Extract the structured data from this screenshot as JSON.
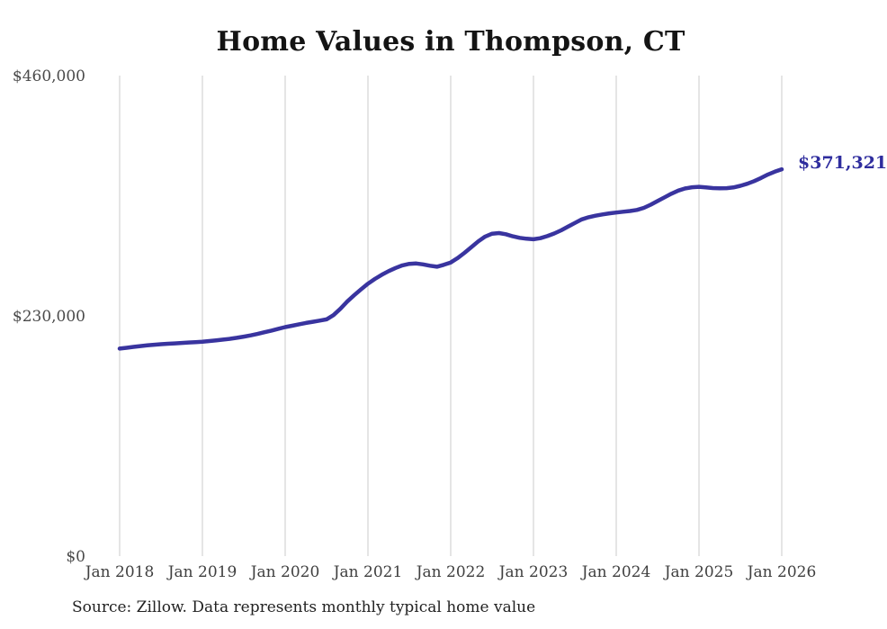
{
  "title": "Home Values in Thompson, CT",
  "source_note": "Source: Zillow. Data represents monthly typical home value",
  "colors": {
    "line": "#39349f",
    "final_label": "#2f2d9e",
    "gridline": "#cbcbcb",
    "title_text": "#141414",
    "axis_text": "#4a4a4a"
  },
  "chart_data": {
    "type": "line",
    "title": "Home Values in Thompson, CT",
    "xlabel": "",
    "ylabel": "",
    "ylim": [
      0,
      460000
    ],
    "grid": "vertical-only",
    "legend": "none",
    "y_ticks": [
      {
        "value": 460000,
        "label": "$460,000"
      },
      {
        "value": 230000,
        "label": "$230,000"
      },
      {
        "value": 0,
        "label": "$0"
      }
    ],
    "x_tick_labels": [
      "Jan 2018",
      "Jan 2019",
      "Jan 2020",
      "Jan 2021",
      "Jan 2022",
      "Jan 2023",
      "Jan 2024",
      "Jan 2025",
      "Jan 2026"
    ],
    "final_value": 371321,
    "final_value_label": "$371,321",
    "series": [
      {
        "name": "Monthly typical home value",
        "color": "#39349f",
        "frequency": "monthly",
        "x_start": "2018-01",
        "x_end": "2026-01",
        "values": [
          200000,
          200800,
          201600,
          202400,
          203100,
          203700,
          204200,
          204600,
          205000,
          205400,
          205800,
          206200,
          206500,
          207200,
          207900,
          208600,
          209400,
          210300,
          211400,
          212600,
          214000,
          215600,
          217200,
          218900,
          220500,
          221800,
          223200,
          224500,
          225600,
          226700,
          227900,
          232000,
          238000,
          245000,
          251000,
          256600,
          262000,
          266500,
          270500,
          274000,
          277000,
          279500,
          281000,
          281300,
          280500,
          279200,
          278200,
          280000,
          282300,
          286500,
          291500,
          297000,
          302500,
          307000,
          309800,
          310400,
          309300,
          307300,
          305800,
          305000,
          304500,
          305500,
          307500,
          310000,
          313000,
          316500,
          320000,
          323500,
          325500,
          327000,
          328200,
          329200,
          330000,
          330800,
          331500,
          332500,
          334500,
          337500,
          341000,
          344500,
          348000,
          351000,
          353000,
          354200,
          354600,
          354000,
          353400,
          353100,
          353300,
          354000,
          355500,
          357500,
          360000,
          363000,
          366400,
          369000,
          371321
        ]
      }
    ]
  }
}
